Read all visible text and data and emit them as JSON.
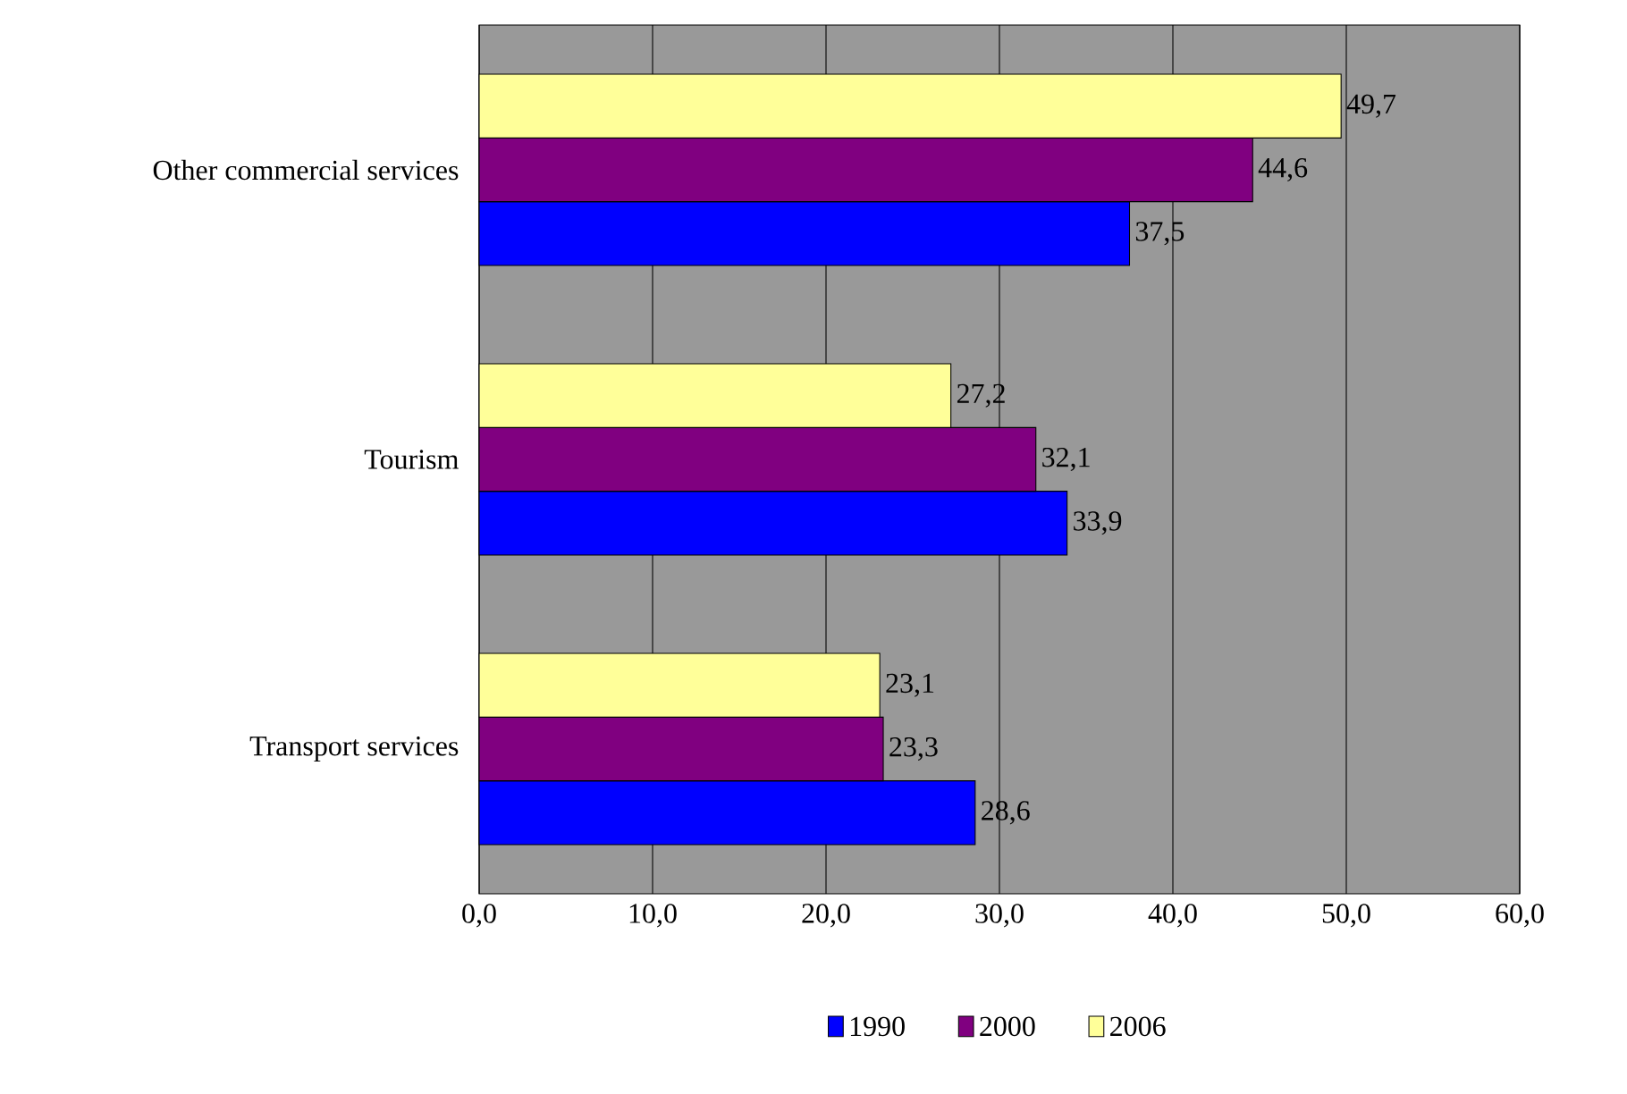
{
  "chart_data": {
    "type": "bar",
    "orientation": "horizontal",
    "categories": [
      "Other commercial services",
      "Tourism",
      "Transport services"
    ],
    "series": [
      {
        "name": "1990",
        "color": "#0000ff",
        "values": [
          37.5,
          33.9,
          28.6
        ],
        "value_labels": [
          "37,5",
          "33,9",
          "28,6"
        ]
      },
      {
        "name": "2000",
        "color": "#800080",
        "values": [
          44.6,
          32.1,
          23.3
        ],
        "value_labels": [
          "44,6",
          "32,1",
          "23,3"
        ]
      },
      {
        "name": "2006",
        "color": "#ffff99",
        "values": [
          49.7,
          27.2,
          23.1
        ],
        "value_labels": [
          "49,7",
          "27,2",
          "23,1"
        ]
      }
    ],
    "xlim": [
      0,
      60
    ],
    "xticks": [
      {
        "value": 0,
        "label": "0,0"
      },
      {
        "value": 10,
        "label": "10,0"
      },
      {
        "value": 20,
        "label": "20,0"
      },
      {
        "value": 30,
        "label": "30,0"
      },
      {
        "value": 40,
        "label": "40,0"
      },
      {
        "value": 50,
        "label": "50,0"
      },
      {
        "value": 60,
        "label": "60,0"
      }
    ],
    "grid": "x",
    "legend": "bottom"
  }
}
